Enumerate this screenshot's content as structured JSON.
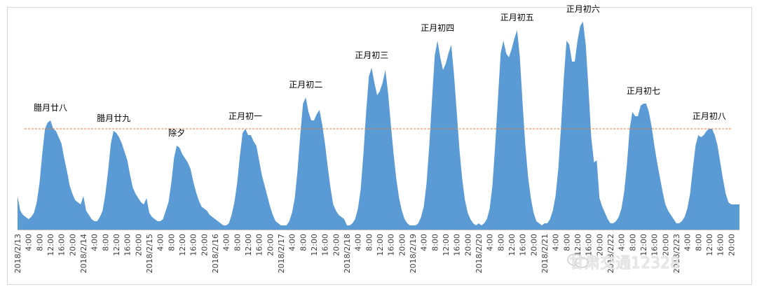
{
  "chart_data": {
    "type": "area",
    "title": "",
    "xlabel": "",
    "ylabel": "",
    "ylim": [
      0,
      100
    ],
    "grid": false,
    "legend": "none",
    "reference_line": {
      "value": 48,
      "style": "dashed",
      "color": "#ED7D31"
    },
    "colors": {
      "area": "#5B9BD5",
      "border": "#D9D9D9"
    },
    "days": [
      {
        "label": "2018/2/13",
        "annotation": "腊月廿八"
      },
      {
        "label": "2018/2/14",
        "annotation": "腊月廿九"
      },
      {
        "label": "2018/2/15",
        "annotation": "除夕"
      },
      {
        "label": "2018/2/16",
        "annotation": "正月初一"
      },
      {
        "label": "2018/2/17",
        "annotation": "正月初二"
      },
      {
        "label": "2018/2/18",
        "annotation": "正月初三"
      },
      {
        "label": "2018/2/19",
        "annotation": "正月初四"
      },
      {
        "label": "2018/2/20",
        "annotation": "正月初五"
      },
      {
        "label": "2018/2/21",
        "annotation": "正月初六"
      },
      {
        "label": "2018/2/22",
        "annotation": "正月初七"
      },
      {
        "label": "2018/2/23",
        "annotation": "正月初八"
      }
    ],
    "tick_labels": [
      "4:00",
      "8:00",
      "12:00",
      "16:00",
      "20:00"
    ],
    "hourly_values": [
      [
        16,
        9,
        7,
        6,
        5,
        6,
        8,
        13,
        22,
        36,
        48,
        51,
        52,
        48,
        47,
        44,
        41,
        34,
        28,
        21,
        17,
        14,
        13,
        12
      ],
      [
        16,
        9,
        7,
        5,
        4,
        4,
        6,
        9,
        17,
        28,
        41,
        47,
        46,
        44,
        41,
        37,
        33,
        26,
        20,
        17,
        15,
        13,
        12,
        15
      ],
      [
        8,
        6,
        5,
        4,
        4,
        5,
        9,
        13,
        22,
        34,
        40,
        39,
        36,
        34,
        32,
        29,
        23,
        18,
        14,
        11,
        10,
        9,
        7,
        6
      ],
      [
        5,
        4,
        3,
        2,
        2,
        3,
        7,
        13,
        22,
        35,
        46,
        48,
        45,
        45,
        42,
        40,
        33,
        26,
        21,
        16,
        11,
        7,
        4,
        3
      ],
      [
        2,
        2,
        2,
        4,
        8,
        15,
        28,
        45,
        60,
        63,
        56,
        52,
        52,
        55,
        57,
        50,
        41,
        30,
        20,
        12,
        9,
        7,
        6,
        5
      ],
      [
        2,
        2,
        3,
        5,
        10,
        19,
        36,
        56,
        73,
        77,
        70,
        64,
        66,
        70,
        76,
        65,
        50,
        36,
        24,
        15,
        9,
        5,
        3,
        2
      ],
      [
        2,
        2,
        3,
        6,
        11,
        22,
        40,
        62,
        83,
        90,
        82,
        76,
        79,
        84,
        88,
        74,
        56,
        38,
        24,
        14,
        8,
        5,
        3,
        2
      ],
      [
        3,
        2,
        3,
        5,
        10,
        21,
        40,
        62,
        84,
        90,
        84,
        82,
        86,
        91,
        95,
        82,
        60,
        40,
        25,
        15,
        8,
        4,
        3,
        2
      ],
      [
        3,
        3,
        5,
        9,
        16,
        29,
        49,
        72,
        90,
        88,
        80,
        80,
        90,
        97,
        99,
        88,
        67,
        44,
        32,
        33,
        15,
        11,
        8,
        5
      ],
      [
        3,
        3,
        4,
        6,
        10,
        18,
        31,
        48,
        56,
        54,
        54,
        59,
        60,
        60,
        56,
        49,
        40,
        32,
        25,
        18,
        12,
        9,
        7,
        5
      ],
      [
        3,
        3,
        4,
        6,
        10,
        17,
        29,
        40,
        45,
        44,
        45,
        47,
        48,
        48,
        45,
        40,
        32,
        24,
        17,
        13,
        12,
        12,
        12,
        12
      ]
    ]
  },
  "watermark": "甘肃交通12328"
}
